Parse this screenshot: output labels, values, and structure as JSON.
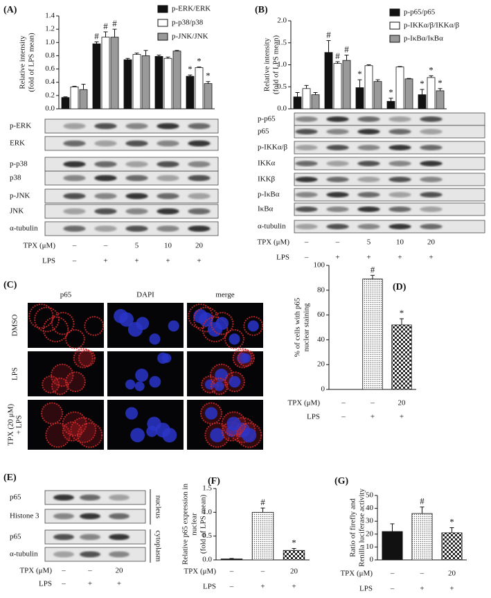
{
  "chart_data": [
    {
      "type": "bar",
      "panel_label": "(A)",
      "ylabel": [
        "Relative intensity",
        "(fold of LPS mean)"
      ],
      "categories": [
        null,
        null,
        null,
        null,
        null
      ],
      "ylim": [
        0,
        1.4
      ],
      "yticks": [
        {
          "value": 0,
          "label": "0.0"
        },
        0.2,
        0.4,
        0.6,
        0.8,
        {
          "value": 1,
          "label": "1.0"
        },
        1.2,
        1.4
      ],
      "series": [
        {
          "name": "p-ERK/ERK",
          "color": "#111111",
          "values": [
            0.17,
            0.98,
            0.74,
            0.79,
            0.49
          ],
          "errors": [
            0.01,
            0.03,
            0.02,
            0.02,
            0.02
          ],
          "annotations": [
            null,
            "#",
            null,
            null,
            "*"
          ]
        },
        {
          "name": "p-p38/p38",
          "color": "#ffffff",
          "values": [
            0.33,
            1.08,
            0.82,
            0.76,
            0.62
          ],
          "errors": [
            0.01,
            0.08,
            0.02,
            0.02,
            0.01
          ],
          "annotations": [
            null,
            "#",
            null,
            null,
            "*"
          ]
        },
        {
          "name": "p-JNK/JNK",
          "color": "#9a9a9a",
          "values": [
            0.29,
            1.08,
            0.8,
            0.87,
            0.38
          ],
          "errors": [
            0.08,
            0.12,
            0.08,
            0.01,
            0.03
          ],
          "annotations": [
            null,
            "#",
            null,
            null,
            "*"
          ]
        }
      ],
      "blot_labels": [
        "p-ERK",
        "ERK",
        "p-p38",
        "p38",
        "p-JNK",
        "JNK",
        "α-tubulin"
      ],
      "treatments": [
        {
          "name": "TPX (μM)",
          "levels": [
            "–",
            "–",
            "5",
            "10",
            "20"
          ]
        },
        {
          "name": "LPS",
          "levels": [
            "–",
            "+",
            "+",
            "+",
            "+"
          ]
        }
      ]
    },
    {
      "type": "bar",
      "panel_label": "(B)",
      "ylabel": [
        "Relative intensity",
        "(fold of LPS mean)"
      ],
      "categories": [
        null,
        null,
        null,
        null,
        null
      ],
      "ylim": [
        0,
        2
      ],
      "yticks": [
        {
          "value": 0,
          "label": "0.0"
        },
        0.5,
        {
          "value": 1,
          "label": "1.0"
        },
        1.5,
        {
          "value": 2,
          "label": "2.0"
        }
      ],
      "series": [
        {
          "name": "p-p65/p65",
          "color": "#111111",
          "values": [
            0.27,
            1.28,
            0.48,
            0.17,
            0.32
          ],
          "errors": [
            0.1,
            0.27,
            0.18,
            0.07,
            0.12
          ],
          "annotations": [
            null,
            "#",
            "*",
            "*",
            "*"
          ]
        },
        {
          "name": "p-IKKα/β/IKKα/β",
          "color": "#ffffff",
          "values": [
            0.46,
            1.03,
            0.98,
            0.95,
            0.71
          ],
          "errors": [
            0.07,
            0.04,
            0.02,
            0.01,
            0.04
          ],
          "annotations": [
            null,
            "#",
            null,
            null,
            "*"
          ]
        },
        {
          "name": "p-IκBα/IκBα",
          "color": "#9a9a9a",
          "values": [
            0.32,
            1.1,
            0.62,
            0.68,
            0.41
          ],
          "errors": [
            0.05,
            0.12,
            0.04,
            0.01,
            0.05
          ],
          "annotations": [
            null,
            "#",
            null,
            null,
            "*"
          ]
        }
      ],
      "blot_labels": [
        "p-p65",
        "p65",
        "p-IKKα/β",
        "IKKα",
        "IKKβ",
        "p-IκBα",
        "IκBα",
        "α-tubulin"
      ],
      "treatments": [
        {
          "name": "TPX (μM)",
          "levels": [
            "–",
            "–",
            "5",
            "10",
            "20"
          ]
        },
        {
          "name": "LPS",
          "levels": [
            "–",
            "+",
            "+",
            "+",
            "+"
          ]
        }
      ]
    },
    {
      "type": "bar",
      "panel_label": "(D)",
      "ylabel": [
        "% of cells with p65",
        "nuclear staining"
      ],
      "categories": [
        null,
        null,
        null
      ],
      "ylim": [
        0,
        100
      ],
      "yticks": [
        0,
        20,
        40,
        60,
        80,
        100
      ],
      "values": [
        0,
        89,
        52
      ],
      "errors": [
        0,
        3,
        5
      ],
      "annotations": [
        null,
        "#",
        "*"
      ],
      "fills": [
        "#111111",
        "dotted",
        "checkered"
      ],
      "treatments": [
        {
          "name": "TPX (μM)",
          "levels": [
            "–",
            "–",
            "20"
          ]
        },
        {
          "name": "LPS",
          "levels": [
            "–",
            "+",
            "+"
          ]
        }
      ]
    },
    {
      "type": "bar",
      "panel_label": "(F)",
      "ylabel": [
        "Relative p65 expression in",
        "nuclear",
        "(fold of LPS mean)"
      ],
      "categories": [
        null,
        null,
        null
      ],
      "ylim": [
        0,
        1.5
      ],
      "yticks": [
        {
          "value": 0,
          "label": "0.0"
        },
        0.5,
        {
          "value": 1,
          "label": "1.0"
        },
        1.5
      ],
      "values": [
        0.02,
        1.0,
        0.2
      ],
      "errors": [
        0.01,
        0.09,
        0.04
      ],
      "annotations": [
        null,
        "#",
        "*"
      ],
      "fills": [
        "#111111",
        "dotted",
        "checkered"
      ],
      "treatments": [
        {
          "name": "TPX (μM)",
          "levels": [
            "–",
            "–",
            "20"
          ]
        },
        {
          "name": "LPS",
          "levels": [
            "–",
            "+",
            "+"
          ]
        }
      ]
    },
    {
      "type": "bar",
      "panel_label": "(G)",
      "ylabel": [
        "Ratio of firefly and",
        "Renilla luciferase activity"
      ],
      "categories": [
        null,
        null,
        null
      ],
      "ylim": [
        0,
        50
      ],
      "yticks": [
        0,
        10,
        20,
        30,
        40,
        50
      ],
      "values": [
        22,
        36,
        21
      ],
      "errors": [
        6,
        5,
        4
      ],
      "annotations": [
        null,
        "#",
        "*"
      ],
      "fills": [
        "#111111",
        "dotted",
        "checkered"
      ],
      "treatments": [
        {
          "name": "TPX (μM)",
          "levels": [
            "–",
            "–",
            "20"
          ]
        },
        {
          "name": "LPS",
          "levels": [
            "–",
            "+",
            "+"
          ]
        }
      ]
    }
  ],
  "panel_c": {
    "panel_label": "(C)",
    "columns": [
      "p65",
      "DAPI",
      "merge"
    ],
    "rows": [
      [
        "DMSO"
      ],
      [
        "LPS"
      ],
      [
        "TPX (20 μM)",
        "+ LPS"
      ]
    ]
  },
  "panel_e": {
    "panel_label": "(E)",
    "blot_labels": [
      "p65",
      "Histone 3",
      "p65",
      "α-tubulin"
    ],
    "fractions": [
      "nucleus",
      "cytoplasm"
    ],
    "treatments": [
      {
        "name": "TPX (μM)",
        "levels": [
          "–",
          "–",
          "20"
        ]
      },
      {
        "name": "LPS",
        "levels": [
          "–",
          "+",
          "+"
        ]
      }
    ]
  }
}
